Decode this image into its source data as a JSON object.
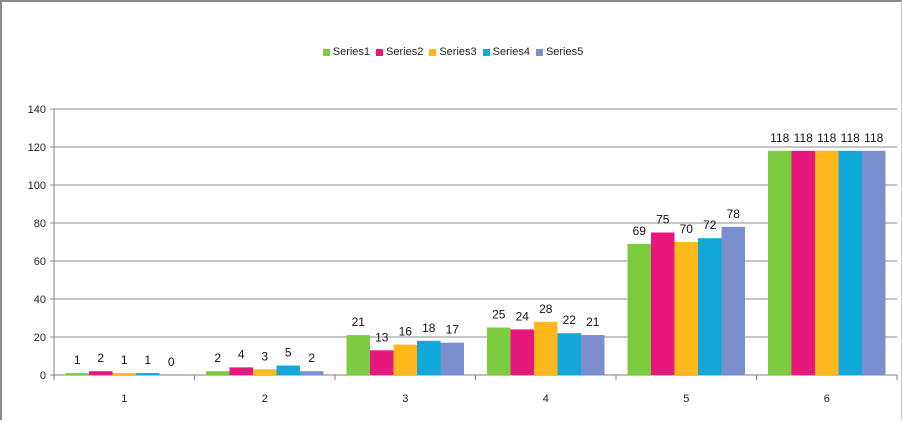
{
  "chart_data": {
    "type": "bar",
    "title": "",
    "xlabel": "",
    "ylabel": "",
    "categories": [
      "1",
      "2",
      "3",
      "4",
      "5",
      "6"
    ],
    "ylim": [
      0,
      140
    ],
    "yticks": [
      0,
      20,
      40,
      60,
      80,
      100,
      120,
      140
    ],
    "ytick_labels": [
      "0",
      "20",
      "40",
      "60",
      "80",
      "100",
      "120",
      "140"
    ],
    "grid": true,
    "legend_position": "top-center",
    "series": [
      {
        "name": "Series1",
        "color": "#7dcc3f",
        "values": [
          1,
          2,
          21,
          25,
          69,
          118
        ]
      },
      {
        "name": "Series2",
        "color": "#e8177d",
        "values": [
          2,
          4,
          13,
          24,
          75,
          118
        ]
      },
      {
        "name": "Series3",
        "color": "#ffb81c",
        "values": [
          1,
          3,
          16,
          28,
          70,
          118
        ]
      },
      {
        "name": "Series4",
        "color": "#12a9d9",
        "values": [
          1,
          5,
          18,
          22,
          72,
          118
        ]
      },
      {
        "name": "Series5",
        "color": "#7b8fcf",
        "values": [
          0,
          2,
          17,
          21,
          78,
          118
        ]
      }
    ]
  }
}
